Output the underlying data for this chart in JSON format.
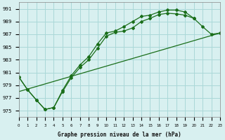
{
  "title": "Graphe pression niveau de la mer (hPa)",
  "background_color": "#d8f0f0",
  "grid_color": "#aad8d8",
  "line_color": "#1a6e1a",
  "x_min": 0,
  "x_max": 23,
  "y_min": 974,
  "y_max": 992,
  "y_ticks": [
    975,
    977,
    979,
    981,
    983,
    985,
    987,
    989,
    991
  ],
  "x_ticks": [
    0,
    1,
    2,
    3,
    4,
    5,
    6,
    7,
    8,
    9,
    10,
    11,
    12,
    13,
    14,
    15,
    16,
    17,
    18,
    19,
    20,
    21,
    22,
    23
  ],
  "series1_no_marker": {
    "x": [
      0,
      23
    ],
    "y": [
      978.0,
      987.2
    ]
  },
  "series2": {
    "x": [
      0,
      1,
      2,
      3,
      4,
      5,
      6,
      7,
      8,
      9,
      10,
      11,
      12,
      13,
      14,
      15,
      16,
      17,
      18,
      19,
      20,
      21,
      22,
      23
    ],
    "y": [
      980.3,
      978.3,
      976.7,
      975.2,
      975.5,
      978.0,
      980.2,
      981.8,
      983.0,
      984.8,
      986.7,
      987.3,
      987.5,
      988.0,
      989.0,
      989.5,
      990.1,
      990.3,
      990.2,
      990.0,
      989.5,
      988.2,
      987.0,
      987.2
    ]
  },
  "series3": {
    "x": [
      0,
      1,
      2,
      3,
      4,
      5,
      6,
      7,
      8,
      9,
      10,
      11,
      12,
      13,
      14,
      15,
      16,
      17,
      18,
      19,
      20
    ],
    "y": [
      980.3,
      978.3,
      976.7,
      975.2,
      975.5,
      978.2,
      980.5,
      982.2,
      983.5,
      985.5,
      987.2,
      987.5,
      988.2,
      989.0,
      989.8,
      990.0,
      990.5,
      990.8,
      990.8,
      990.5,
      989.5
    ]
  }
}
